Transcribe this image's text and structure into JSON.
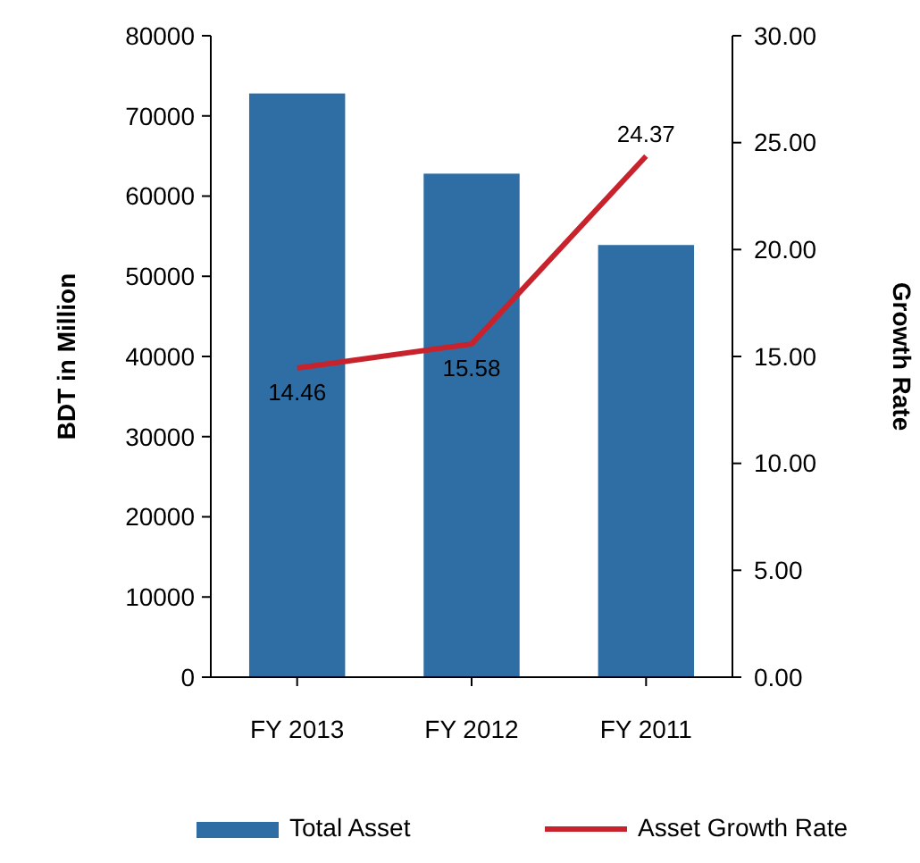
{
  "chart_data": {
    "type": "bar",
    "categories": [
      "FY 2013",
      "FY 2012",
      "FY 2011"
    ],
    "ylabel": "BDT in Million",
    "y2label": "Growth Rate",
    "ylim": [
      0,
      80000
    ],
    "yticks": [
      0,
      10000,
      20000,
      30000,
      40000,
      50000,
      60000,
      70000,
      80000
    ],
    "y2lim": [
      0,
      30
    ],
    "y2ticks": [
      {
        "value": 0,
        "label": "0.00"
      },
      {
        "value": 5,
        "label": "5.00"
      },
      {
        "value": 10,
        "label": "10.00"
      },
      {
        "value": 15,
        "label": "15.00"
      },
      {
        "value": 20,
        "label": "20.00"
      },
      {
        "value": 25,
        "label": "25.00"
      },
      {
        "value": 30,
        "label": "30.00"
      }
    ],
    "series": [
      {
        "name": "Total Asset",
        "color": "#2f6ea5",
        "values": [
          72800,
          62800,
          53900
        ]
      },
      {
        "name": "Asset Growth Rate",
        "type": "line",
        "axis": "y2",
        "color": "#c8232c",
        "values": [
          14.46,
          15.58,
          24.37
        ],
        "value_labels": [
          "14.46",
          "15.58",
          "24.37"
        ]
      }
    ],
    "grid": false,
    "legend": "bottom",
    "marker": "none"
  }
}
